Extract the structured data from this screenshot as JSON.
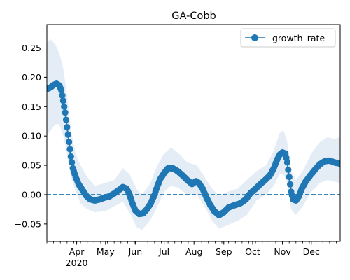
{
  "chart_data": {
    "type": "line",
    "title": "GA-Cobb",
    "legend": {
      "entries": [
        "growth_rate"
      ],
      "placement": "top-right"
    },
    "x_axis": {
      "type": "date",
      "range": [
        "2020-03-01",
        "2020-12-31"
      ],
      "tick_labels": [
        {
          "date": "2020-04-01",
          "label": "Apr",
          "sublabel": "2020"
        },
        {
          "date": "2020-05-01",
          "label": "May"
        },
        {
          "date": "2020-06-01",
          "label": "Jun"
        },
        {
          "date": "2020-07-01",
          "label": "Jul"
        },
        {
          "date": "2020-08-01",
          "label": "Aug"
        },
        {
          "date": "2020-09-01",
          "label": "Sep"
        },
        {
          "date": "2020-10-01",
          "label": "Oct"
        },
        {
          "date": "2020-11-01",
          "label": "Nov"
        },
        {
          "date": "2020-12-01",
          "label": "Dec"
        }
      ]
    },
    "y_axis": {
      "range": [
        -0.08,
        0.29
      ],
      "ticks": [
        -0.05,
        0.0,
        0.05,
        0.1,
        0.15,
        0.2,
        0.25
      ],
      "tick_labels": [
        "−0.05",
        "0.00",
        "0.05",
        "0.10",
        "0.15",
        "0.20",
        "0.25"
      ]
    },
    "grid": false,
    "reference_line": {
      "y": 0,
      "style": "dashed",
      "color": "#1f77b4"
    },
    "colors": {
      "series": "#1f77b4",
      "band": "#dbe7f3"
    },
    "series": [
      {
        "name": "growth_rate",
        "marker": "circle",
        "points": [
          [
            "2020-03-01",
            0.18
          ],
          [
            "2020-03-05",
            0.183
          ],
          [
            "2020-03-08",
            0.187
          ],
          [
            "2020-03-11",
            0.189
          ],
          [
            "2020-03-14",
            0.186
          ],
          [
            "2020-03-16",
            0.178
          ],
          [
            "2020-03-18",
            0.16
          ],
          [
            "2020-03-20",
            0.14
          ],
          [
            "2020-03-22",
            0.115
          ],
          [
            "2020-03-24",
            0.09
          ],
          [
            "2020-03-26",
            0.065
          ],
          [
            "2020-03-28",
            0.045
          ],
          [
            "2020-03-31",
            0.03
          ],
          [
            "2020-04-03",
            0.018
          ],
          [
            "2020-04-07",
            0.008
          ],
          [
            "2020-04-11",
            -0.002
          ],
          [
            "2020-04-15",
            -0.008
          ],
          [
            "2020-04-20",
            -0.01
          ],
          [
            "2020-04-25",
            -0.008
          ],
          [
            "2020-04-30",
            -0.005
          ],
          [
            "2020-05-05",
            -0.003
          ],
          [
            "2020-05-10",
            0.002
          ],
          [
            "2020-05-15",
            0.008
          ],
          [
            "2020-05-19",
            0.013
          ],
          [
            "2020-05-23",
            0.01
          ],
          [
            "2020-05-26",
            0.0
          ],
          [
            "2020-05-29",
            -0.015
          ],
          [
            "2020-06-01",
            -0.027
          ],
          [
            "2020-06-05",
            -0.033
          ],
          [
            "2020-06-09",
            -0.032
          ],
          [
            "2020-06-13",
            -0.025
          ],
          [
            "2020-06-17",
            -0.015
          ],
          [
            "2020-06-21",
            0.0
          ],
          [
            "2020-06-24",
            0.015
          ],
          [
            "2020-06-27",
            0.027
          ],
          [
            "2020-07-01",
            0.037
          ],
          [
            "2020-07-05",
            0.045
          ],
          [
            "2020-07-10",
            0.045
          ],
          [
            "2020-07-15",
            0.04
          ],
          [
            "2020-07-20",
            0.033
          ],
          [
            "2020-07-25",
            0.025
          ],
          [
            "2020-07-30",
            0.018
          ],
          [
            "2020-08-03",
            0.023
          ],
          [
            "2020-08-06",
            0.02
          ],
          [
            "2020-08-10",
            0.01
          ],
          [
            "2020-08-14",
            -0.005
          ],
          [
            "2020-08-18",
            -0.018
          ],
          [
            "2020-08-22",
            -0.028
          ],
          [
            "2020-08-27",
            -0.035
          ],
          [
            "2020-09-01",
            -0.03
          ],
          [
            "2020-09-06",
            -0.022
          ],
          [
            "2020-09-12",
            -0.018
          ],
          [
            "2020-09-18",
            -0.015
          ],
          [
            "2020-09-24",
            -0.008
          ],
          [
            "2020-09-29",
            0.003
          ],
          [
            "2020-10-04",
            0.01
          ],
          [
            "2020-10-09",
            0.018
          ],
          [
            "2020-10-14",
            0.025
          ],
          [
            "2020-10-19",
            0.033
          ],
          [
            "2020-10-23",
            0.045
          ],
          [
            "2020-10-26",
            0.058
          ],
          [
            "2020-10-29",
            0.068
          ],
          [
            "2020-11-01",
            0.072
          ],
          [
            "2020-11-04",
            0.07
          ],
          [
            "2020-11-06",
            0.055
          ],
          [
            "2020-11-08",
            0.03
          ],
          [
            "2020-11-10",
            0.005
          ],
          [
            "2020-11-12",
            -0.008
          ],
          [
            "2020-11-15",
            -0.01
          ],
          [
            "2020-11-18",
            -0.003
          ],
          [
            "2020-11-21",
            0.01
          ],
          [
            "2020-11-25",
            0.022
          ],
          [
            "2020-11-30",
            0.033
          ],
          [
            "2020-12-05",
            0.043
          ],
          [
            "2020-12-10",
            0.052
          ],
          [
            "2020-12-15",
            0.057
          ],
          [
            "2020-12-20",
            0.058
          ],
          [
            "2020-12-25",
            0.055
          ],
          [
            "2020-12-31",
            0.053
          ]
        ],
        "band": [
          [
            "2020-03-01",
            0.1,
            0.26
          ],
          [
            "2020-03-05",
            0.11,
            0.265
          ],
          [
            "2020-03-10",
            0.12,
            0.255
          ],
          [
            "2020-03-14",
            0.12,
            0.24
          ],
          [
            "2020-03-18",
            0.1,
            0.215
          ],
          [
            "2020-03-22",
            0.07,
            0.17
          ],
          [
            "2020-03-26",
            0.03,
            0.11
          ],
          [
            "2020-03-31",
            0.005,
            0.07
          ],
          [
            "2020-04-05",
            -0.015,
            0.05
          ],
          [
            "2020-04-12",
            -0.025,
            0.03
          ],
          [
            "2020-04-20",
            -0.03,
            0.015
          ],
          [
            "2020-05-01",
            -0.028,
            0.02
          ],
          [
            "2020-05-10",
            -0.02,
            0.025
          ],
          [
            "2020-05-19",
            -0.012,
            0.045
          ],
          [
            "2020-05-26",
            -0.03,
            0.035
          ],
          [
            "2020-06-02",
            -0.055,
            0.01
          ],
          [
            "2020-06-08",
            -0.06,
            0.0
          ],
          [
            "2020-06-16",
            -0.045,
            0.018
          ],
          [
            "2020-06-24",
            -0.02,
            0.05
          ],
          [
            "2020-07-01",
            0.005,
            0.07
          ],
          [
            "2020-07-08",
            0.015,
            0.08
          ],
          [
            "2020-07-15",
            0.012,
            0.072
          ],
          [
            "2020-07-25",
            0.0,
            0.055
          ],
          [
            "2020-08-04",
            0.0,
            0.05
          ],
          [
            "2020-08-12",
            -0.02,
            0.03
          ],
          [
            "2020-08-20",
            -0.045,
            0.01
          ],
          [
            "2020-08-27",
            -0.058,
            -0.002
          ],
          [
            "2020-09-05",
            -0.052,
            0.005
          ],
          [
            "2020-09-15",
            -0.045,
            0.01
          ],
          [
            "2020-09-25",
            -0.035,
            0.025
          ],
          [
            "2020-10-05",
            -0.01,
            0.04
          ],
          [
            "2020-10-15",
            0.0,
            0.05
          ],
          [
            "2020-10-23",
            0.015,
            0.075
          ],
          [
            "2020-10-29",
            0.035,
            0.105
          ],
          [
            "2020-11-02",
            0.035,
            0.11
          ],
          [
            "2020-11-06",
            0.02,
            0.09
          ],
          [
            "2020-11-10",
            -0.025,
            0.04
          ],
          [
            "2020-11-15",
            -0.035,
            0.025
          ],
          [
            "2020-11-22",
            -0.02,
            0.04
          ],
          [
            "2020-12-01",
            0.005,
            0.07
          ],
          [
            "2020-12-10",
            0.02,
            0.09
          ],
          [
            "2020-12-18",
            0.025,
            0.098
          ],
          [
            "2020-12-25",
            0.022,
            0.095
          ],
          [
            "2020-12-31",
            0.02,
            0.098
          ]
        ]
      }
    ]
  }
}
